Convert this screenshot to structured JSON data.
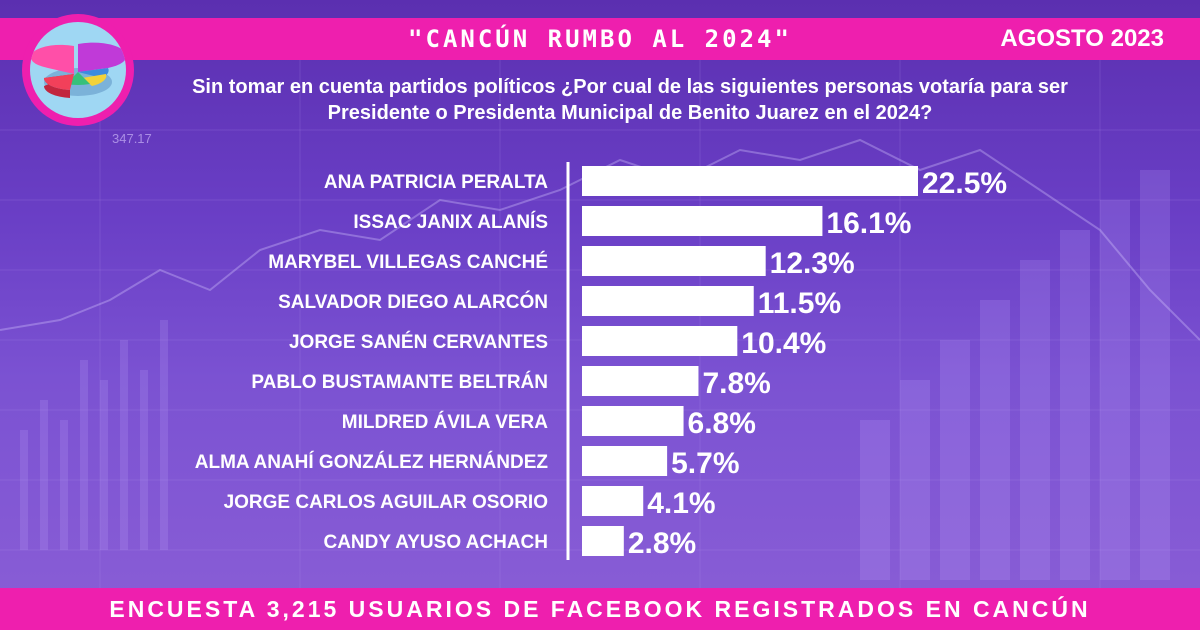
{
  "header": {
    "title": "\"CANCÚN RUMBO AL 2024\"",
    "date": "AGOSTO 2023"
  },
  "question": "Sin tomar en cuenta partidos políticos ¿Por cual de las siguientes personas votaría para ser Presidente o Presidenta Municipal de Benito Juarez en el 2024?",
  "footer": "ENCUESTA 3,215 USUARIOS DE FACEBOOK REGISTRADOS EN CANCÚN",
  "decoration": {
    "ticker": "347.17"
  },
  "colors": {
    "accent": "#ee1fae",
    "bar": "#ffffff",
    "text": "#ffffff"
  },
  "chart_data": {
    "type": "bar",
    "orientation": "horizontal",
    "categories": [
      "ANA PATRICIA PERALTA",
      "ISSAC JANIX ALANÍS",
      "MARYBEL VILLEGAS CANCHÉ",
      "SALVADOR DIEGO ALARCÓN",
      "JORGE SANÉN CERVANTES",
      "PABLO BUSTAMANTE BELTRÁN",
      "MILDRED ÁVILA VERA",
      "ALMA ANAHÍ GONZÁLEZ HERNÁNDEZ",
      "JORGE CARLOS AGUILAR OSORIO",
      "CANDY AYUSO ACHACH"
    ],
    "values": [
      22.5,
      16.1,
      12.3,
      11.5,
      10.4,
      7.8,
      6.8,
      5.7,
      4.1,
      2.8
    ],
    "value_labels": [
      "22.5%",
      "16.1%",
      "12.3%",
      "11.5%",
      "10.4%",
      "7.8%",
      "6.8%",
      "5.7%",
      "4.1%",
      "2.8%"
    ],
    "unit": "%",
    "xlim": [
      0,
      22.5
    ]
  }
}
